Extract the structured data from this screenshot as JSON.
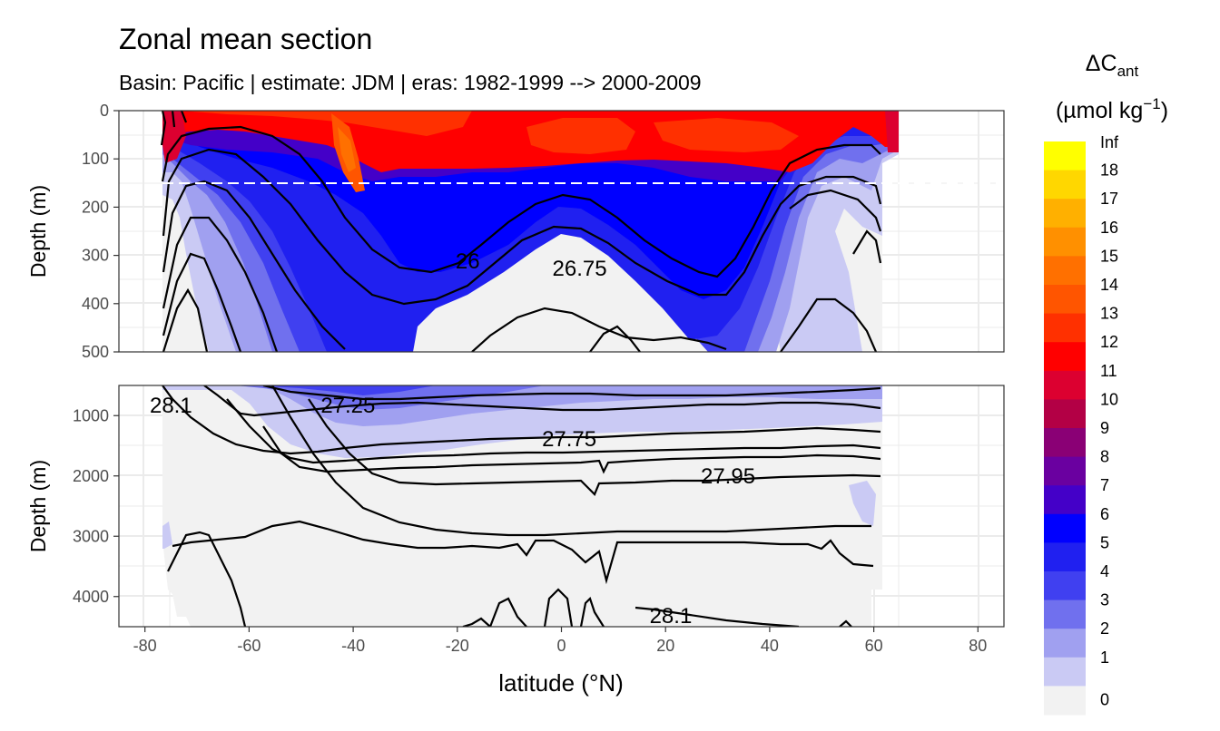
{
  "chart_data": {
    "type": "heatmap",
    "title": "Zonal mean section",
    "subtitle": "Basin: Pacific | estimate: JDM  | eras: 1982-1999 --> 2000-2009",
    "xlabel": "latitude (°N)",
    "ylabel": "Depth (m)",
    "xlim": [
      -85,
      85
    ],
    "x_ticks": [
      -80,
      -60,
      -40,
      -20,
      0,
      20,
      40,
      60,
      80
    ],
    "x_tick_labels": [
      "-80",
      "-60",
      "-40",
      "-20",
      "0",
      "20",
      "40",
      "60",
      "80"
    ],
    "panels": [
      {
        "name": "upper",
        "ylim": [
          0,
          500
        ],
        "y_ticks": [
          0,
          100,
          200,
          300,
          400,
          500
        ],
        "y_tick_labels": [
          "0",
          "100",
          "200",
          "300",
          "400",
          "500"
        ],
        "dashed_line_depth": 150,
        "contour_labels": [
          {
            "text": "26",
            "lat": -18,
            "depth": 312
          },
          {
            "text": "26.75",
            "lat": 3.5,
            "depth": 327
          }
        ]
      },
      {
        "name": "lower",
        "ylim": [
          500,
          4500
        ],
        "y_ticks": [
          1000,
          2000,
          3000,
          4000
        ],
        "y_tick_labels": [
          "1000",
          "2000",
          "3000",
          "4000"
        ],
        "contour_labels": [
          {
            "text": "28.1",
            "lat": -75,
            "depth": 830
          },
          {
            "text": "27.25",
            "lat": -41,
            "depth": 830
          },
          {
            "text": "27.75",
            "lat": 1.5,
            "depth": 1390
          },
          {
            "text": "27.95",
            "lat": 32,
            "depth": 2000
          },
          {
            "text": "28.1",
            "lat": 21,
            "depth": 4320
          }
        ]
      }
    ],
    "legend": {
      "title": "ΔC",
      "title_subscript": "ant",
      "unit_prefix": "(µmol kg",
      "unit_sup": "−1",
      "unit_suffix": ")",
      "labels": [
        "Inf",
        "18",
        "17",
        "16",
        "15",
        "14",
        "13",
        "12",
        "11",
        "10",
        "9",
        "8",
        "7",
        "6",
        "5",
        "4",
        "3",
        "2",
        "1",
        "0"
      ],
      "colors": [
        "#ffff00",
        "#ffd700",
        "#ffb000",
        "#ff9000",
        "#ff7000",
        "#ff5500",
        "#ff3000",
        "#ff0000",
        "#dc0030",
        "#b30045",
        "#8a0075",
        "#6a00a0",
        "#4400c8",
        "#0000ff",
        "#2020f0",
        "#4040f0",
        "#7070ee",
        "#a0a0f0",
        "#cacaf4",
        "#f2f2f2"
      ]
    }
  }
}
